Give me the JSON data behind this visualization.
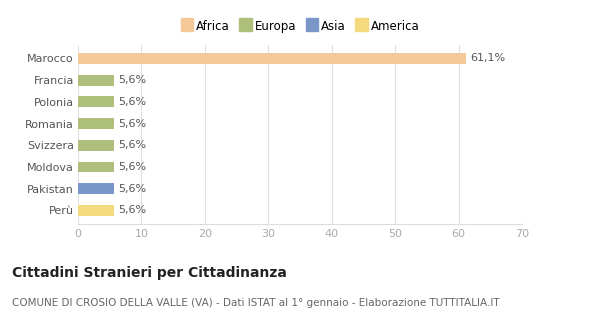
{
  "categories": [
    "Marocco",
    "Francia",
    "Polonia",
    "Romania",
    "Svizzera",
    "Moldova",
    "Pakistan",
    "Perù"
  ],
  "values": [
    61.1,
    5.6,
    5.6,
    5.6,
    5.6,
    5.6,
    5.6,
    5.6
  ],
  "labels": [
    "61,1%",
    "5,6%",
    "5,6%",
    "5,6%",
    "5,6%",
    "5,6%",
    "5,6%",
    "5,6%"
  ],
  "colors": [
    "#F5C89A",
    "#ADBF7B",
    "#ADBF7B",
    "#ADBF7B",
    "#ADBF7B",
    "#ADBF7B",
    "#7B96C8",
    "#F5D97E"
  ],
  "continent_labels": [
    "Africa",
    "Europa",
    "Asia",
    "America"
  ],
  "continent_colors": [
    "#F5C89A",
    "#ADBF7B",
    "#7B96C8",
    "#F5D97E"
  ],
  "xlim": [
    0,
    70
  ],
  "xticks": [
    0,
    10,
    20,
    30,
    40,
    50,
    60,
    70
  ],
  "title": "Cittadini Stranieri per Cittadinanza",
  "subtitle": "COMUNE DI CROSIO DELLA VALLE (VA) - Dati ISTAT al 1° gennaio - Elaborazione TUTTITALIA.IT",
  "bg_color": "#ffffff",
  "title_fontsize": 10,
  "subtitle_fontsize": 7.5,
  "bar_height": 0.5,
  "label_fontsize": 8,
  "ytick_fontsize": 8,
  "xtick_fontsize": 8,
  "legend_fontsize": 8.5
}
